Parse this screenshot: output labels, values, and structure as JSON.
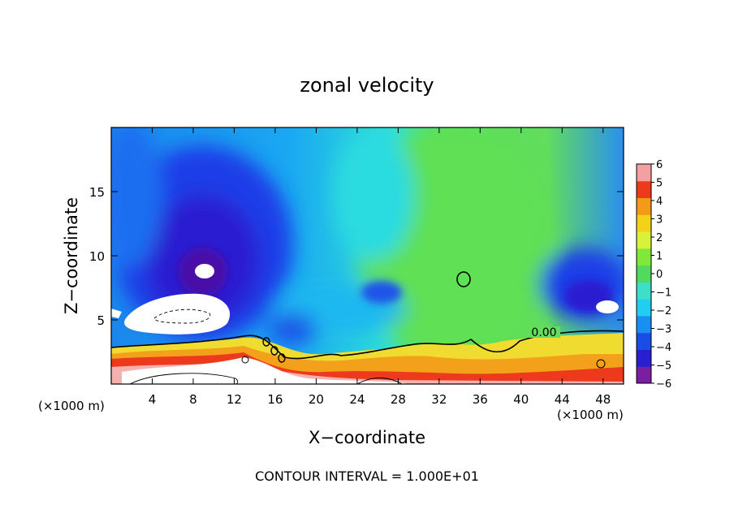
{
  "chart_data": {
    "type": "heatmap",
    "title": "zonal velocity",
    "xlabel": "X−coordinate",
    "ylabel": "Z−coordinate",
    "x_unit_label_left": "(×1000 m)",
    "x_unit_label_right": "(×1000 m)",
    "footer": "CONTOUR INTERVAL = 1.000E+01",
    "xlim": [
      0,
      50
    ],
    "ylim": [
      0,
      20
    ],
    "x_ticks": [
      4,
      8,
      12,
      16,
      20,
      24,
      28,
      32,
      36,
      40,
      44,
      48
    ],
    "x_tick_labels": [
      "4",
      "8",
      "12",
      "16",
      "20",
      "24",
      "28",
      "32",
      "36",
      "40",
      "44",
      "48"
    ],
    "y_ticks": [
      5,
      10,
      15
    ],
    "y_tick_labels": [
      "5",
      "10",
      "15"
    ],
    "contour_label": "0.00",
    "contour_label_at": [
      42,
      4
    ],
    "colorbar": {
      "min": -6,
      "max": 6,
      "labels": [
        "6",
        "5",
        "4",
        "3",
        "2",
        "1",
        "0",
        "−1",
        "−2",
        "−3",
        "−4",
        "−5",
        "−6"
      ],
      "colors": [
        "#7a1fa2",
        "#2a1fd0",
        "#1a4de8",
        "#1b8ef2",
        "#21cdf0",
        "#3ce0c8",
        "#52d960",
        "#7fe83a",
        "#d8f23a",
        "#f5d21a",
        "#f39a18",
        "#ee3a1c",
        "#f4a0a0"
      ]
    },
    "features": [
      {
        "kind": "negative_core",
        "x": 9,
        "z": 9,
        "note": "strong easterly maximum"
      },
      {
        "kind": "negative_core",
        "x": 47,
        "z": 7
      },
      {
        "kind": "positive_layer",
        "z_range": [
          0,
          3.5
        ],
        "note": "westerly surface layer"
      },
      {
        "kind": "near_zero_region",
        "x_range": [
          30,
          46
        ],
        "z_range": [
          4,
          20
        ]
      }
    ]
  }
}
